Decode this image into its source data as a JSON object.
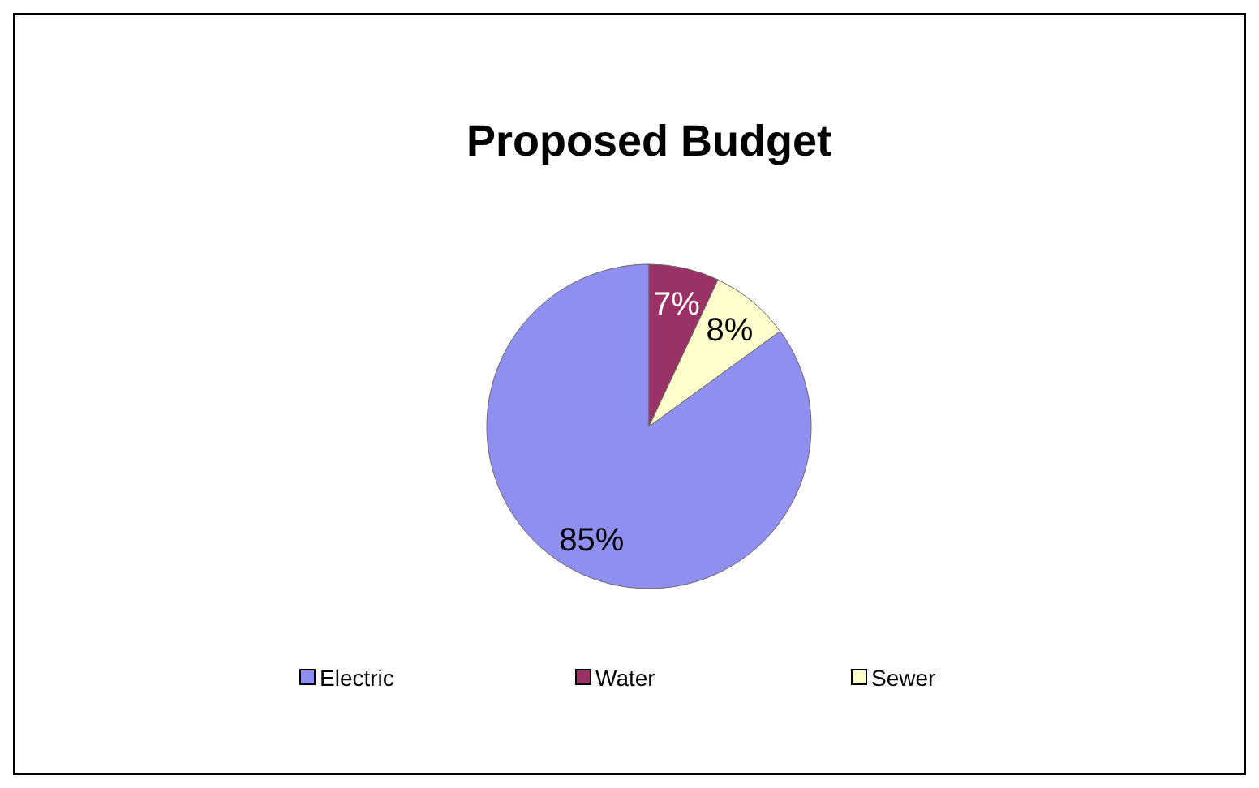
{
  "chart_data": {
    "type": "pie",
    "title": "Proposed Budget",
    "categories": [
      "Electric",
      "Water",
      "Sewer"
    ],
    "values": [
      85,
      7,
      8
    ],
    "value_labels": [
      "85%",
      "7%",
      "8%"
    ],
    "colors": [
      "#8f8fef",
      "#993366",
      "#ffffcc"
    ],
    "legend": "bottom"
  }
}
